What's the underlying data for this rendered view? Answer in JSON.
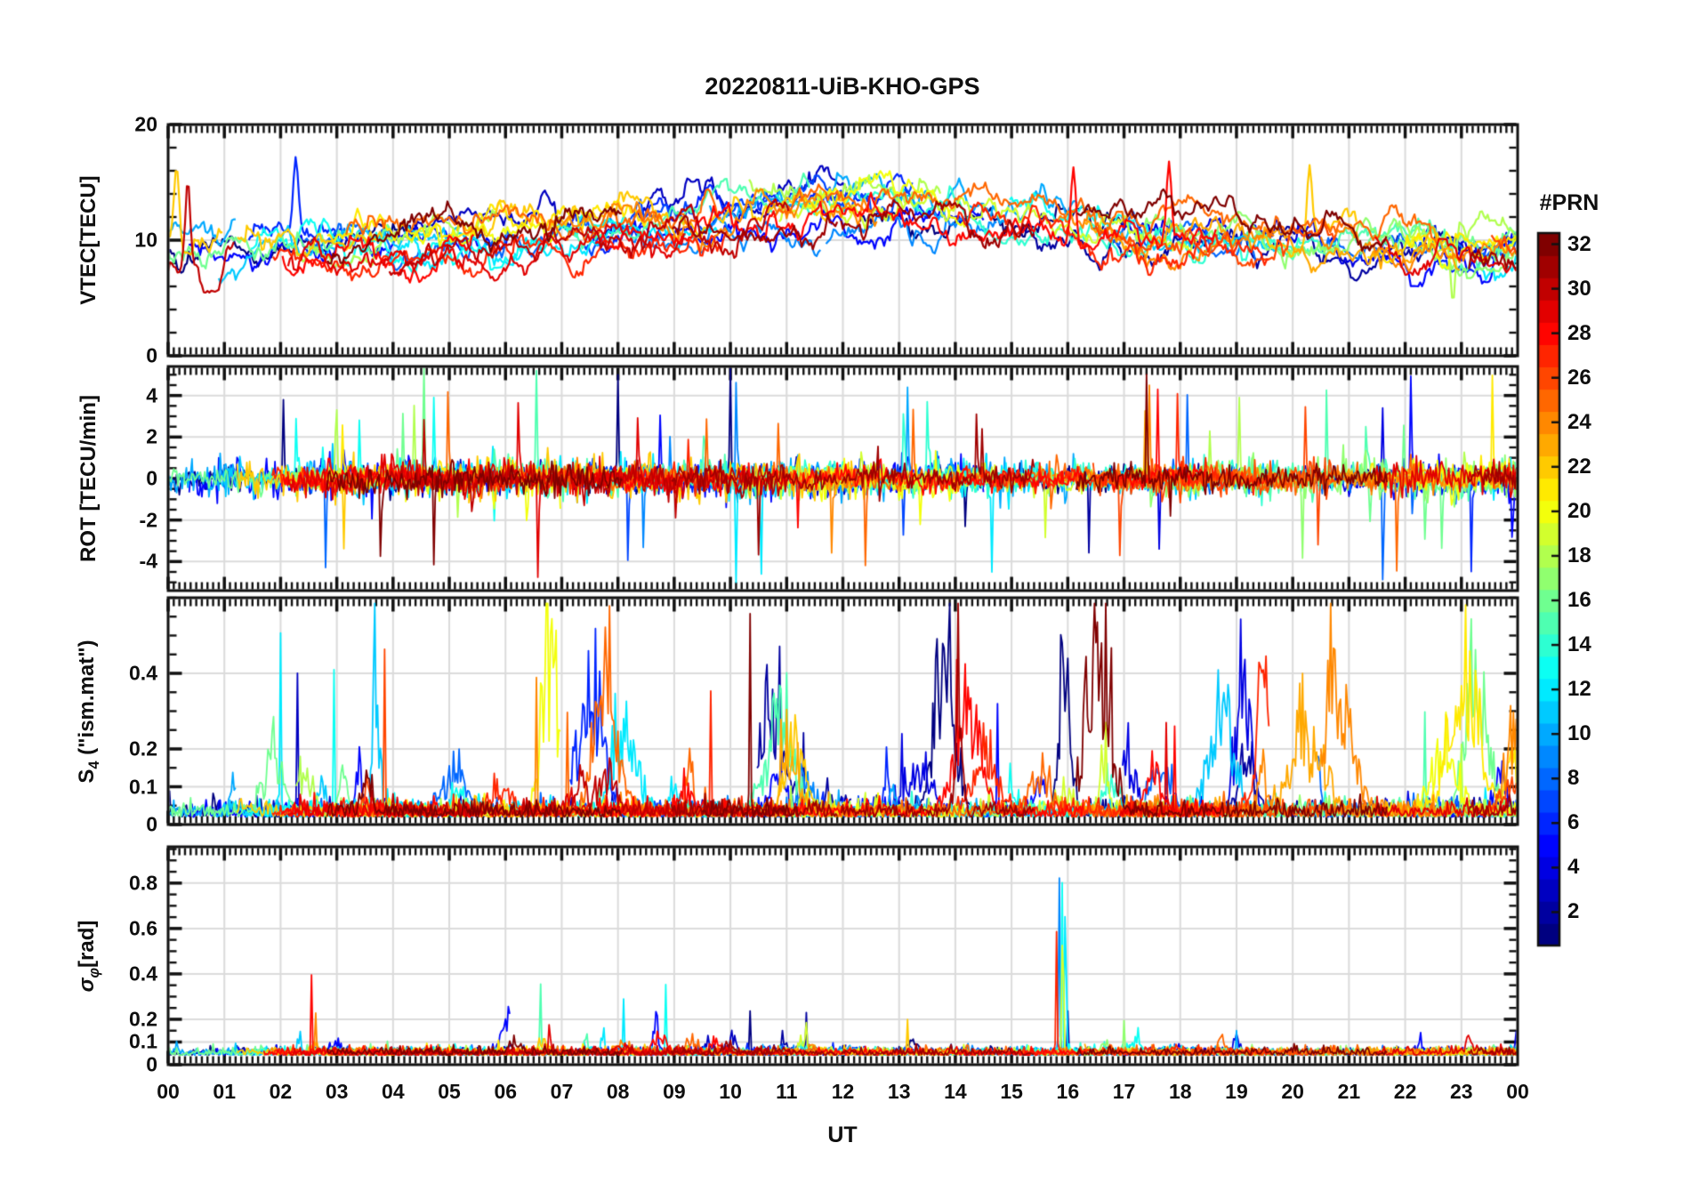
{
  "chart_data": {
    "type": "line",
    "title": "20220811-UiB-KHO-GPS",
    "xlabel": "UT",
    "x_range_hours": [
      0,
      24
    ],
    "x_ticks": [
      "00",
      "01",
      "02",
      "03",
      "04",
      "05",
      "06",
      "07",
      "08",
      "09",
      "10",
      "11",
      "12",
      "13",
      "14",
      "15",
      "16",
      "17",
      "18",
      "19",
      "20",
      "21",
      "22",
      "23",
      "00"
    ],
    "x_minor_per_hour": 10,
    "grid": "on",
    "n_series": 32,
    "series_colored_by": "PRN",
    "seed": 20220811,
    "colorbar": {
      "label": "#PRN",
      "colormap": "jet",
      "segments": 32,
      "prn_min": 1,
      "prn_max": 32,
      "ticks": [
        2,
        4,
        6,
        8,
        10,
        12,
        14,
        16,
        18,
        20,
        22,
        24,
        26,
        28,
        30,
        32
      ]
    },
    "panels": [
      {
        "id": "vtec",
        "ylabel": {
          "pre": "VTEC[TECU]",
          "sub": "",
          "post": "",
          "italic": false
        },
        "ylim": [
          0,
          20
        ],
        "yticks": [
          0,
          10,
          20
        ],
        "ytick_labels": [
          "0",
          "10",
          "20"
        ],
        "y_minor_step": 2,
        "grid_y": [
          10
        ],
        "gen": {
          "kind": "smooth",
          "base_night": 9.2,
          "base_peak_add": 3.4,
          "peak_hour": 12.4,
          "peak_width_h": 5.6,
          "offset_range": 2.6,
          "walk_step": 0.38,
          "clip": [
            3.2,
            18.5
          ]
        },
        "events": [
          {
            "t": 0.15,
            "prn": 22,
            "peak": 16.4
          },
          {
            "t": 0.35,
            "prn": 30,
            "peak": 15.2
          },
          {
            "t": 2.27,
            "prn": 6,
            "peak": 17.2
          },
          {
            "t": 16.1,
            "prn": 28,
            "peak": 16.3
          },
          {
            "t": 17.8,
            "prn": 28,
            "peak": 16.8
          },
          {
            "t": 20.3,
            "prn": 22,
            "peak": 16.5
          },
          {
            "t": 22.85,
            "prn": 18,
            "peak": 4.6
          }
        ]
      },
      {
        "id": "rot",
        "ylabel": {
          "pre": "ROT [TECU/min]",
          "sub": "",
          "post": "",
          "italic": false
        },
        "ylim": [
          -5.4,
          5.4
        ],
        "yticks": [
          -4,
          -2,
          0,
          2,
          4
        ],
        "ytick_labels": [
          "-4",
          "-2",
          "0",
          "2",
          "4"
        ],
        "y_minor_step": 0.5,
        "grid_y": [
          -4,
          -2,
          0,
          2,
          4
        ],
        "gen": {
          "kind": "noise",
          "amp_min": 0.16,
          "amp_rand": 0.3,
          "spike_prob": 0.011,
          "spike_max": 4.3,
          "clip": [
            -5.3,
            5.3
          ]
        },
        "events": [
          {
            "t": 2.05,
            "prn": 1,
            "peak": 3.8
          },
          {
            "t": 4.55,
            "prn": 16,
            "peak": 5.3
          },
          {
            "t": 6.55,
            "prn": 15,
            "peak": 5.2
          },
          {
            "t": 8.0,
            "prn": 1,
            "peak": 5.0
          },
          {
            "t": 10.0,
            "prn": 1,
            "peak": 5.4
          },
          {
            "t": 10.1,
            "prn": 12,
            "peak": -5.0
          },
          {
            "t": 10.55,
            "prn": 12,
            "peak": -4.6
          },
          {
            "t": 13.15,
            "prn": 10,
            "peak": 4.4
          },
          {
            "t": 14.65,
            "prn": 12,
            "peak": -4.5
          },
          {
            "t": 17.6,
            "prn": 28,
            "peak": 4.3
          },
          {
            "t": 19.05,
            "prn": 18,
            "peak": 3.9
          },
          {
            "t": 21.6,
            "prn": 4,
            "peak": 3.4
          }
        ]
      },
      {
        "id": "s4",
        "ylabel": {
          "pre": "S",
          "sub": "4",
          "post": " (\"ism.mat\")",
          "italic": false
        },
        "ylim": [
          0,
          0.6
        ],
        "yticks": [
          0,
          0.1,
          0.2,
          0.4
        ],
        "ytick_labels": [
          "0",
          "0.1",
          "0.2",
          "0.4"
        ],
        "y_minor_step": 0.05,
        "grid_y": [
          0.1,
          0.2,
          0.4
        ],
        "gen": {
          "kind": "bursty",
          "base": 0.02,
          "base_noise": 0.02,
          "nburst_min": 4,
          "nburst_rand": 4,
          "amp_lo": 0.04,
          "amp_lo_rand": 0.14,
          "amp_hi": 0.2,
          "amp_hi_rand": 0.3,
          "big_prob": 0.18,
          "width_min": 0.06,
          "width_rand": 0.3,
          "clip": [
            0.004,
            0.585
          ]
        },
        "events": [
          {
            "t": 2.0,
            "prn": 12,
            "peak": 0.55
          },
          {
            "t": 2.3,
            "prn": 3,
            "peak": 0.5
          },
          {
            "t": 2.95,
            "prn": 13,
            "peak": 0.42
          },
          {
            "t": 3.85,
            "prn": 26,
            "peak": 0.5
          },
          {
            "t": 6.55,
            "prn": 24,
            "peak": 0.42
          },
          {
            "t": 7.1,
            "prn": 25,
            "peak": 0.36
          },
          {
            "t": 9.65,
            "prn": 27,
            "peak": 0.38
          },
          {
            "t": 10.35,
            "prn": 32,
            "peak": 0.57
          },
          {
            "t": 10.9,
            "prn": 23,
            "peak": 0.32
          },
          {
            "t": 11.3,
            "prn": 2,
            "peak": 0.28
          },
          {
            "t": 13.05,
            "prn": 4,
            "peak": 0.29
          },
          {
            "t": 14.75,
            "prn": 5,
            "peak": 0.33
          },
          {
            "t": 17.75,
            "prn": 29,
            "peak": 0.3
          },
          {
            "t": 17.9,
            "prn": 28,
            "peak": 0.29
          },
          {
            "t": 22.35,
            "prn": 15,
            "peak": 0.33
          },
          {
            "t": 23.0,
            "prn": 18,
            "peak": 0.25
          }
        ]
      },
      {
        "id": "sigma_phi",
        "ylabel": {
          "pre": "σ",
          "sub": "φ",
          "post": "[rad]",
          "italic": true
        },
        "ylim": [
          0,
          0.96
        ],
        "yticks": [
          0,
          0.1,
          0.2,
          0.4,
          0.6,
          0.8
        ],
        "ytick_labels": [
          "0",
          "0.1",
          "0.2",
          "0.4",
          "0.6",
          "0.8"
        ],
        "y_minor_step": 0.05,
        "grid_y": [
          0.1,
          0.2,
          0.4,
          0.6,
          0.8
        ],
        "gen": {
          "kind": "bursty",
          "base": 0.042,
          "base_noise": 0.016,
          "nburst_min": 2,
          "nburst_rand": 3,
          "amp_lo": 0.02,
          "amp_lo_rand": 0.07,
          "amp_hi": 0.12,
          "amp_hi_rand": 0.18,
          "big_prob": 0.1,
          "width_min": 0.03,
          "width_rand": 0.12,
          "clip": [
            0.004,
            0.945
          ]
        },
        "events": [
          {
            "t": 2.55,
            "prn": 28,
            "peak": 0.42
          },
          {
            "t": 2.62,
            "prn": 24,
            "peak": 0.3
          },
          {
            "t": 6.62,
            "prn": 15,
            "peak": 0.44
          },
          {
            "t": 8.1,
            "prn": 12,
            "peak": 0.33
          },
          {
            "t": 8.85,
            "prn": 13,
            "peak": 0.37
          },
          {
            "t": 10.35,
            "prn": 1,
            "peak": 0.27
          },
          {
            "t": 11.35,
            "prn": 2,
            "peak": 0.26
          },
          {
            "t": 13.15,
            "prn": 22,
            "peak": 0.2
          },
          {
            "t": 15.8,
            "prn": 27,
            "peak": 0.68
          },
          {
            "t": 15.85,
            "prn": 9,
            "peak": 0.96
          },
          {
            "t": 15.9,
            "prn": 13,
            "peak": 0.96
          },
          {
            "t": 15.91,
            "prn": 19,
            "peak": 0.85
          },
          {
            "t": 15.96,
            "prn": 12,
            "peak": 0.96
          },
          {
            "t": 16.0,
            "prn": 2,
            "peak": 0.26
          },
          {
            "t": 17.0,
            "prn": 17,
            "peak": 0.22
          },
          {
            "t": 19.0,
            "prn": 10,
            "peak": 0.15
          }
        ]
      }
    ]
  },
  "style": {
    "frame_color": "#111111",
    "grid_color": "#dbdbdb",
    "background": "#ffffff",
    "text_color": "#0f0f0f"
  }
}
